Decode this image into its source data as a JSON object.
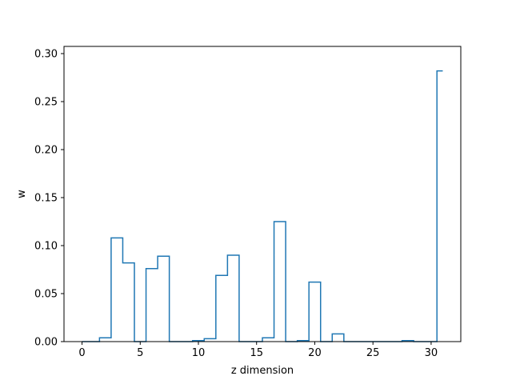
{
  "chart_data": {
    "type": "line",
    "drawstyle": "steps-mid",
    "title": "",
    "xlabel": "z dimension",
    "ylabel": "w",
    "xlim": [
      -1.55,
      32.55
    ],
    "ylim": [
      0,
      0.3075
    ],
    "xticks": [
      0,
      5,
      10,
      15,
      20,
      25,
      30
    ],
    "yticks": [
      0.0,
      0.05,
      0.1,
      0.15,
      0.2,
      0.25,
      0.3
    ],
    "ytick_labels": [
      "0.00",
      "0.05",
      "0.10",
      "0.15",
      "0.20",
      "0.25",
      "0.30"
    ],
    "grid": false,
    "legend": "none",
    "series": [
      {
        "color": "#1f77b4",
        "x": [
          0,
          1,
          2,
          3,
          4,
          5,
          6,
          7,
          8,
          9,
          10,
          11,
          12,
          13,
          14,
          15,
          16,
          17,
          18,
          19,
          20,
          21,
          22,
          23,
          24,
          25,
          26,
          27,
          28,
          29,
          30,
          31
        ],
        "y": [
          0.0,
          0.0,
          0.004,
          0.108,
          0.082,
          0.0,
          0.076,
          0.089,
          0.0,
          0.0,
          0.001,
          0.003,
          0.069,
          0.09,
          0.0,
          0.0,
          0.004,
          0.125,
          0.0,
          0.001,
          0.062,
          0.0,
          0.008,
          0.0,
          0.0,
          0.0,
          0.0,
          0.0,
          0.001,
          0.0,
          0.0,
          0.282
        ]
      }
    ]
  }
}
